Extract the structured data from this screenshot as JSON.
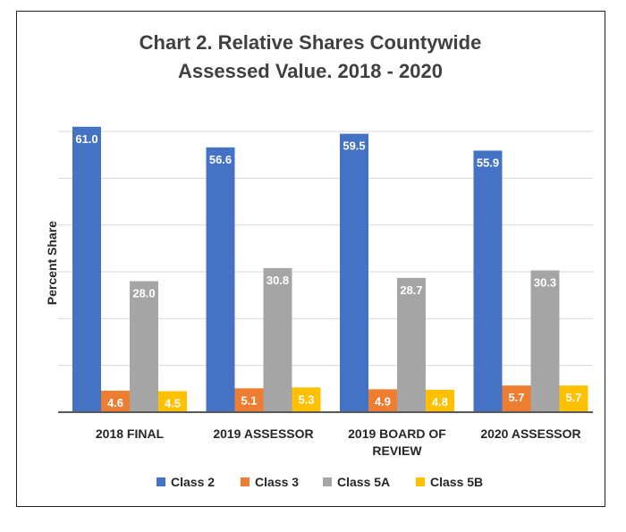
{
  "chart_data": {
    "type": "bar",
    "title": "Chart 2. Relative Shares Countywide Assessed Value. 2018 - 2020",
    "title_lines": [
      "Chart 2. Relative Shares Countywide",
      "Assessed Value. 2018 - 2020"
    ],
    "xlabel": "",
    "ylabel": "Percent Share",
    "ylim": [
      0,
      60
    ],
    "gridlines": [
      10,
      20,
      30,
      40,
      50,
      60
    ],
    "categories": [
      "2018 FINAL",
      "2019 ASSESSOR",
      "2019 BOARD OF REVIEW",
      "2020 ASSESSOR"
    ],
    "category_lines": [
      [
        "2018 FINAL"
      ],
      [
        "2019 ASSESSOR"
      ],
      [
        "2019 BOARD OF",
        "REVIEW"
      ],
      [
        "2020 ASSESSOR"
      ]
    ],
    "series": [
      {
        "name": "Class 2",
        "color": "#4472C4",
        "values": [
          61.0,
          56.6,
          59.5,
          55.9
        ],
        "labels": [
          "61.0",
          "56.6",
          "59.5",
          "55.9"
        ]
      },
      {
        "name": "Class 3",
        "color": "#ED7D31",
        "values": [
          4.6,
          5.1,
          4.9,
          5.7
        ],
        "labels": [
          "4.6",
          "5.1",
          "4.9",
          "5.7"
        ]
      },
      {
        "name": "Class 5A",
        "color": "#A5A5A5",
        "values": [
          28.0,
          30.8,
          28.7,
          30.3
        ],
        "labels": [
          "28.0",
          "30.8",
          "28.7",
          "30.3"
        ]
      },
      {
        "name": "Class 5B",
        "color": "#FFC000",
        "values": [
          4.5,
          5.3,
          4.8,
          5.7
        ],
        "labels": [
          "4.5",
          "5.3",
          "4.8",
          "5.7"
        ]
      }
    ],
    "legend_position": "bottom"
  }
}
